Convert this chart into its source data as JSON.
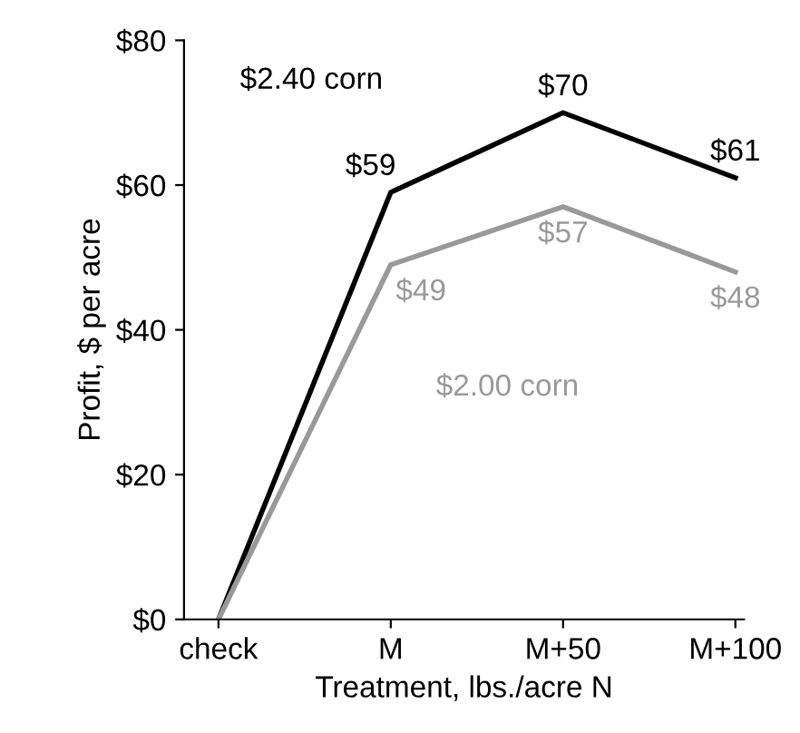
{
  "chart_data": {
    "type": "line",
    "xlabel": "Treatment, lbs./acre N",
    "ylabel": "Profit, $ per acre",
    "categories": [
      "check",
      "M",
      "M+50",
      "M+100"
    ],
    "series": [
      {
        "name": "$2.40 corn",
        "color": "#000000",
        "values": [
          0,
          59,
          70,
          61
        ],
        "value_labels": [
          null,
          "$59",
          "$70",
          "$61"
        ]
      },
      {
        "name": "$2.00 corn",
        "color": "#999999",
        "values": [
          0,
          49,
          57,
          48
        ],
        "value_labels": [
          null,
          "$49",
          "$57",
          "$48"
        ]
      }
    ],
    "ylim": [
      0,
      80
    ],
    "yticks": [
      {
        "value": 0,
        "label": "$0"
      },
      {
        "value": 20,
        "label": "$20"
      },
      {
        "value": 40,
        "label": "$40"
      },
      {
        "value": 60,
        "label": "$60"
      },
      {
        "value": 80,
        "label": "$80"
      }
    ],
    "grid": false,
    "legend": false,
    "marker": "none",
    "line_style": "solid"
  }
}
